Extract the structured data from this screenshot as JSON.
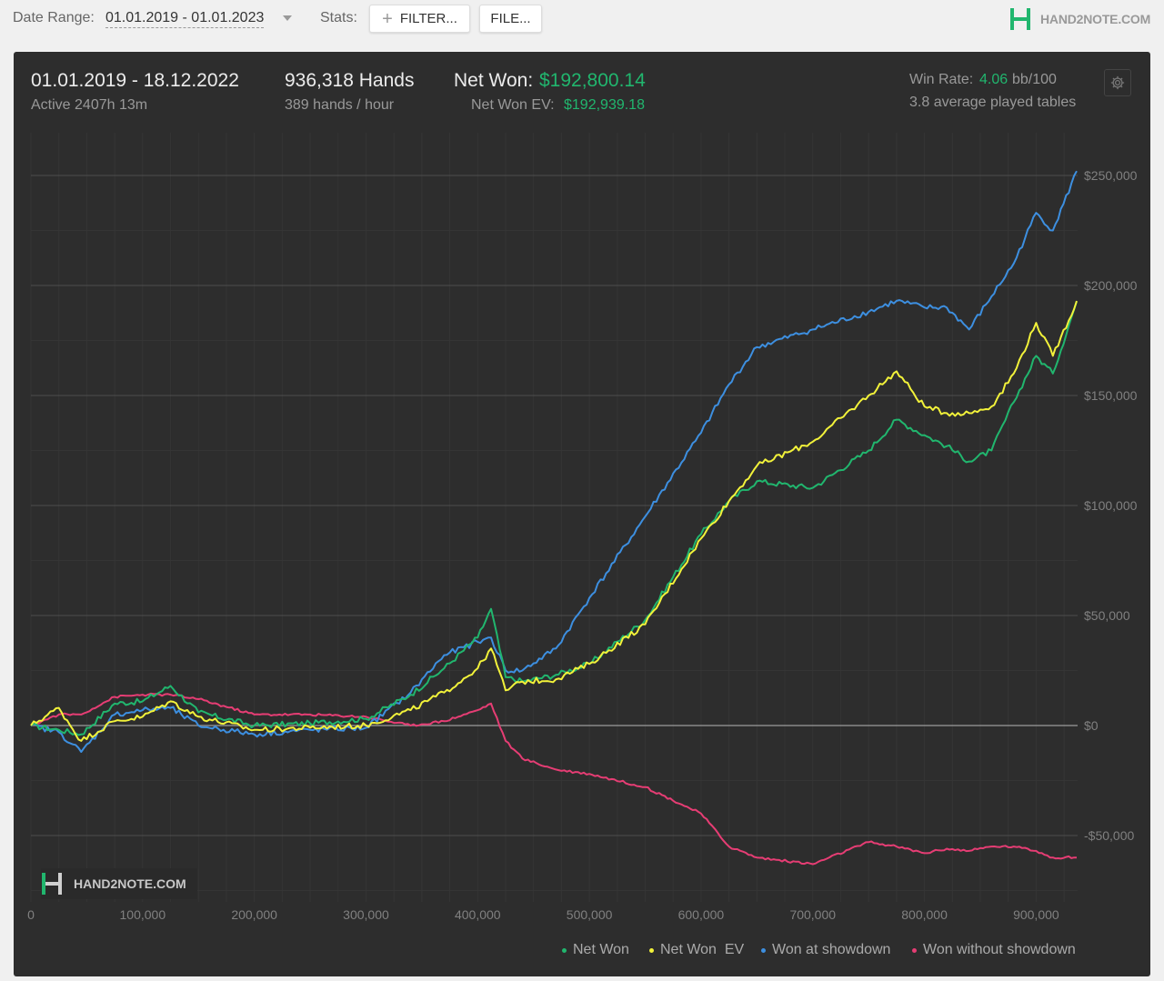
{
  "toolbar": {
    "date_range_label": "Date Range:",
    "date_range_value": "01.01.2019 - 01.01.2023",
    "stats_label": "Stats:",
    "filter_button": "FILTER...",
    "file_button": "FILE...",
    "logo_text": "HAND2NOTE.COM"
  },
  "summary": {
    "period": "01.01.2019 - 18.12.2022",
    "active": "Active 2407h 13m",
    "hands": "936,318 Hands",
    "hands_per_hour": "389 hands / hour",
    "net_won_label": "Net Won:",
    "net_won_value": "$192,800.14",
    "net_won_ev_label": "Net Won  EV:",
    "net_won_ev_value": "$192,939.18",
    "win_rate_label": "Win Rate:",
    "win_rate_value": "4.06",
    "win_rate_unit": "bb/100",
    "tables": "3.8 average played tables"
  },
  "watermark": "HAND2NOTE.COM",
  "colors": {
    "net_won": "#21b66e",
    "net_won_ev": "#f2f23a",
    "won_at_showdown": "#3d8fe0",
    "won_without_showdown": "#e63d74",
    "accent_green": "#21b66e"
  },
  "icons": {
    "settings": "gear-icon",
    "add": "plus-icon",
    "logo": "hand2note-logo-icon",
    "dropdown": "chevron-down-icon"
  },
  "chart_data": {
    "type": "line",
    "xlim": [
      0,
      936318
    ],
    "ylim": [
      -75000,
      270000
    ],
    "x_ticks": [
      0,
      100000,
      200000,
      300000,
      400000,
      500000,
      600000,
      700000,
      800000,
      900000
    ],
    "x_tick_labels": [
      "0",
      "100,000",
      "200,000",
      "300,000",
      "400,000",
      "500,000",
      "600,000",
      "700,000",
      "800,000",
      "900,000"
    ],
    "y_ticks": [
      -50000,
      0,
      50000,
      100000,
      150000,
      200000,
      250000
    ],
    "y_tick_labels": [
      "-$50,000",
      "$0",
      "$50,000",
      "$100,000",
      "$150,000",
      "$200,000",
      "$250,000"
    ],
    "grid": true,
    "legend_position": "bottom-right",
    "x": [
      0,
      25000,
      45000,
      75000,
      100000,
      125000,
      150000,
      200000,
      250000,
      300000,
      340000,
      370000,
      400000,
      412000,
      425000,
      440000,
      470000,
      500000,
      550000,
      600000,
      625000,
      650000,
      700000,
      750000,
      775000,
      800000,
      820000,
      840000,
      860000,
      880000,
      900000,
      915000,
      936318
    ],
    "series": [
      {
        "name": "Net Won",
        "values": [
          0,
          -2000,
          -4000,
          10000,
          11000,
          18000,
          6000,
          0,
          1000,
          3000,
          14000,
          26000,
          40000,
          53000,
          22000,
          20000,
          23000,
          28000,
          48000,
          87000,
          102000,
          111000,
          108000,
          125000,
          139000,
          132000,
          127000,
          120000,
          125000,
          147000,
          168000,
          160000,
          192800
        ]
      },
      {
        "name": "Net Won  EV",
        "values": [
          0,
          8000,
          -7000,
          2000,
          4000,
          11000,
          4000,
          -2000,
          -1000,
          0,
          7000,
          15000,
          26000,
          35000,
          16000,
          20000,
          21000,
          28000,
          46000,
          85000,
          102000,
          118000,
          129000,
          150000,
          161000,
          145000,
          142000,
          142000,
          145000,
          160000,
          183000,
          168000,
          192939
        ]
      },
      {
        "name": "Won at showdown",
        "values": [
          0,
          -3000,
          -12000,
          5000,
          7000,
          8000,
          0,
          -4000,
          -2000,
          -1000,
          15000,
          32000,
          38000,
          40000,
          25000,
          25000,
          35000,
          58000,
          95000,
          133000,
          155000,
          172000,
          180000,
          188000,
          193000,
          190000,
          190000,
          180000,
          195000,
          210000,
          233000,
          225000,
          252000
        ]
      },
      {
        "name": "Won without showdown",
        "values": [
          0,
          5000,
          5000,
          13000,
          14000,
          14000,
          12000,
          5000,
          5000,
          4000,
          0,
          2000,
          7000,
          10000,
          -7000,
          -15000,
          -20000,
          -22000,
          -28000,
          -40000,
          -55000,
          -60000,
          -63000,
          -53000,
          -55000,
          -58000,
          -56000,
          -57000,
          -55000,
          -55000,
          -57000,
          -60000,
          -60000
        ]
      }
    ]
  }
}
